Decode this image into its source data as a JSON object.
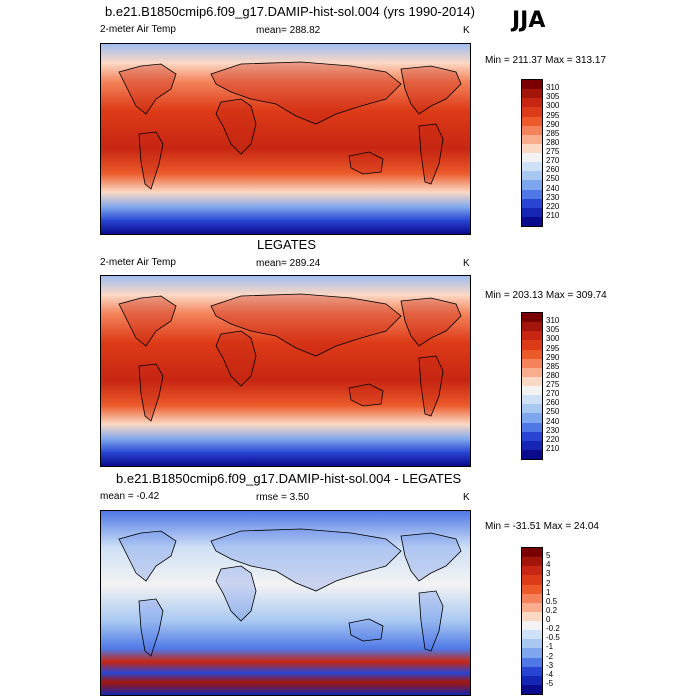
{
  "season_label": "JJA",
  "panels": [
    {
      "title": "b.e21.B1850cmip6.f09_g17.DAMIP-hist-sol.004 (yrs 1990-2014)",
      "left_label": "2-meter Air Temp",
      "center_label": "mean= 288.82",
      "right_label": "K",
      "minmax": "Min = 211.37 Max = 313.17",
      "colorbar": {
        "labels": [
          "310",
          "305",
          "300",
          "295",
          "290",
          "285",
          "280",
          "275",
          "270",
          "260",
          "250",
          "240",
          "230",
          "220",
          "210"
        ],
        "colors": [
          "#7a0000",
          "#a3150a",
          "#c72612",
          "#dd3b17",
          "#ec5a2a",
          "#f4825a",
          "#f9ad8e",
          "#fbd9c4",
          "#f3f3f3",
          "#cfe1f6",
          "#a8c8f2",
          "#7ea6ee",
          "#4f78e6",
          "#2744d3",
          "#1426b3",
          "#0a0a8c"
        ]
      },
      "map": {
        "kind": "absolute"
      }
    },
    {
      "title": "LEGATES",
      "left_label": "2-meter Air Temp",
      "center_label": "mean= 289.24",
      "right_label": "K",
      "minmax": "Min = 203.13 Max = 309.74",
      "colorbar": {
        "labels": [
          "310",
          "305",
          "300",
          "295",
          "290",
          "285",
          "280",
          "275",
          "270",
          "260",
          "250",
          "240",
          "230",
          "220",
          "210"
        ],
        "colors": [
          "#7a0000",
          "#a3150a",
          "#c72612",
          "#dd3b17",
          "#ec5a2a",
          "#f4825a",
          "#f9ad8e",
          "#fbd9c4",
          "#f3f3f3",
          "#cfe1f6",
          "#a8c8f2",
          "#7ea6ee",
          "#4f78e6",
          "#2744d3",
          "#1426b3",
          "#0a0a8c"
        ]
      },
      "map": {
        "kind": "absolute"
      }
    },
    {
      "title": "b.e21.B1850cmip6.f09_g17.DAMIP-hist-sol.004 - LEGATES",
      "left_label": "mean = -0.42",
      "center_label": "rmse = 3.50",
      "right_label": "K",
      "minmax": "Min = -31.51 Max = 24.04",
      "colorbar": {
        "labels": [
          "5",
          "4",
          "3",
          "2",
          "1",
          "0.5",
          "0.2",
          "0",
          "-0.2",
          "-0.5",
          "-1",
          "-2",
          "-3",
          "-4",
          "-5"
        ],
        "colors": [
          "#7a0000",
          "#a3150a",
          "#c72612",
          "#dd3b17",
          "#ec5a2a",
          "#f4825a",
          "#f9ad8e",
          "#fbd9c4",
          "#f3f3f3",
          "#cfe1f6",
          "#a8c8f2",
          "#7ea6ee",
          "#4f78e6",
          "#2744d3",
          "#1426b3",
          "#0a0a8c"
        ]
      },
      "map": {
        "kind": "difference"
      }
    }
  ]
}
